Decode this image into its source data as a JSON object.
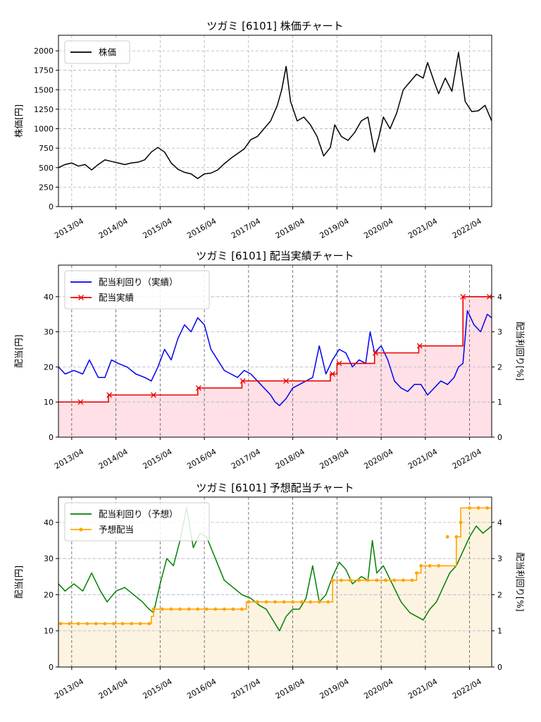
{
  "chart_data": [
    {
      "type": "line",
      "title": "ツガミ [6101]  株価チャート",
      "ylabel": "株価[円]",
      "ylim": [
        0,
        2200
      ],
      "yticks": [
        0,
        250,
        500,
        750,
        1000,
        1250,
        1500,
        1750,
        2000
      ],
      "xlim": [
        2012.95,
        2022.75
      ],
      "xticks": [
        "2013/04",
        "2014/04",
        "2015/04",
        "2016/04",
        "2017/04",
        "2018/04",
        "2019/04",
        "2020/04",
        "2021/04",
        "2022/04"
      ],
      "grid": true,
      "legend": "top-left",
      "series": [
        {
          "name": "株価",
          "color": "#000000",
          "x": [
            2012.95,
            2013.1,
            2013.25,
            2013.4,
            2013.55,
            2013.7,
            2013.85,
            2014.0,
            2014.15,
            2014.3,
            2014.45,
            2014.6,
            2014.75,
            2014.9,
            2015.05,
            2015.2,
            2015.35,
            2015.5,
            2015.65,
            2015.8,
            2015.95,
            2016.1,
            2016.25,
            2016.4,
            2016.55,
            2016.7,
            2016.85,
            2017.0,
            2017.15,
            2017.3,
            2017.45,
            2017.6,
            2017.75,
            2017.9,
            2018.0,
            2018.1,
            2018.2,
            2018.35,
            2018.5,
            2018.65,
            2018.8,
            2018.95,
            2019.1,
            2019.2,
            2019.35,
            2019.5,
            2019.65,
            2019.8,
            2019.95,
            2020.1,
            2020.2,
            2020.3,
            2020.45,
            2020.6,
            2020.75,
            2020.9,
            2021.05,
            2021.2,
            2021.3,
            2021.45,
            2021.55,
            2021.7,
            2021.85,
            2022.0,
            2022.15,
            2022.3,
            2022.45,
            2022.6,
            2022.75
          ],
          "y": [
            500,
            540,
            560,
            520,
            540,
            470,
            540,
            600,
            580,
            560,
            540,
            560,
            570,
            600,
            700,
            760,
            700,
            560,
            480,
            440,
            420,
            360,
            420,
            430,
            470,
            550,
            620,
            680,
            740,
            860,
            900,
            1000,
            1100,
            1300,
            1500,
            1800,
            1350,
            1100,
            1150,
            1050,
            900,
            650,
            760,
            1050,
            900,
            850,
            950,
            1100,
            1150,
            700,
            900,
            1150,
            1000,
            1200,
            1500,
            1600,
            1700,
            1650,
            1850,
            1600,
            1450,
            1650,
            1480,
            1980,
            1350,
            1220,
            1230,
            1300,
            1100
          ]
        }
      ]
    },
    {
      "type": "line",
      "title": "ツガミ [6101]  配当実績チャート",
      "ylabel": "配当[円]",
      "y2label": "配当利回り[%]",
      "ylim": [
        0,
        49
      ],
      "yticks": [
        0,
        10,
        20,
        30,
        40
      ],
      "y2lim": [
        0,
        4.9
      ],
      "y2ticks": [
        0,
        1,
        2,
        3,
        4
      ],
      "xlim": [
        2012.95,
        2022.75
      ],
      "xticks": [
        "2013/04",
        "2014/04",
        "2015/04",
        "2016/04",
        "2017/04",
        "2018/04",
        "2019/04",
        "2020/04",
        "2021/04",
        "2022/04"
      ],
      "legend": "top-left",
      "series": [
        {
          "name": "配当利回り（実績）",
          "color": "#0000ee",
          "axis": "y2",
          "x": [
            2012.95,
            2013.1,
            2013.3,
            2013.5,
            2013.65,
            2013.85,
            2014.0,
            2014.15,
            2014.3,
            2014.5,
            2014.7,
            2014.9,
            2015.05,
            2015.2,
            2015.35,
            2015.5,
            2015.65,
            2015.8,
            2015.95,
            2016.1,
            2016.25,
            2016.4,
            2016.55,
            2016.7,
            2016.85,
            2017.0,
            2017.15,
            2017.3,
            2017.45,
            2017.6,
            2017.75,
            2017.85,
            2017.95,
            2018.1,
            2018.25,
            2018.4,
            2018.55,
            2018.7,
            2018.85,
            2019.0,
            2019.15,
            2019.3,
            2019.45,
            2019.6,
            2019.75,
            2019.9,
            2020.0,
            2020.1,
            2020.25,
            2020.4,
            2020.55,
            2020.7,
            2020.85,
            2021.0,
            2021.15,
            2021.3,
            2021.45,
            2021.6,
            2021.75,
            2021.9,
            2022.0,
            2022.1,
            2022.2,
            2022.35,
            2022.5,
            2022.65,
            2022.75
          ],
          "y": [
            2.0,
            1.8,
            1.9,
            1.8,
            2.2,
            1.7,
            1.7,
            2.2,
            2.1,
            2.0,
            1.8,
            1.7,
            1.6,
            2.0,
            2.5,
            2.2,
            2.8,
            3.2,
            3.0,
            3.4,
            3.2,
            2.5,
            2.2,
            1.9,
            1.8,
            1.7,
            1.9,
            1.8,
            1.6,
            1.4,
            1.2,
            1.0,
            0.9,
            1.1,
            1.4,
            1.5,
            1.6,
            1.7,
            2.6,
            1.8,
            2.2,
            2.5,
            2.4,
            2.0,
            2.2,
            2.1,
            3.0,
            2.4,
            2.6,
            2.2,
            1.6,
            1.4,
            1.3,
            1.5,
            1.5,
            1.2,
            1.4,
            1.6,
            1.5,
            1.7,
            2.0,
            2.1,
            3.6,
            3.2,
            3.0,
            3.5,
            3.4
          ]
        },
        {
          "name": "配当実績",
          "color": "#ee0000",
          "axis": "y",
          "step_x": [
            2012.95,
            2014.08,
            2016.1,
            2017.1,
            2019.1,
            2019.25,
            2020.1,
            2021.1,
            2022.1,
            2022.75
          ],
          "step_y": [
            10,
            12,
            14,
            16,
            18,
            21,
            24,
            26,
            40,
            40
          ],
          "markers_x": [
            2013.45,
            2014.1,
            2015.1,
            2016.12,
            2017.12,
            2018.1,
            2019.15,
            2019.3,
            2020.12,
            2021.12,
            2022.1,
            2022.7
          ],
          "markers_y": [
            10,
            12,
            12,
            14,
            16,
            16,
            18,
            21,
            24,
            26,
            40,
            40
          ]
        }
      ]
    },
    {
      "type": "line",
      "title": "ツガミ [6101]  予想配当チャート",
      "ylabel": "配当[円]",
      "y2label": "配当利回り[%]",
      "ylim": [
        0,
        47
      ],
      "yticks": [
        0,
        10,
        20,
        30,
        40
      ],
      "y2lim": [
        0,
        4.7
      ],
      "y2ticks": [
        0,
        1,
        2,
        3,
        4
      ],
      "xlim": [
        2012.95,
        2022.75
      ],
      "xticks": [
        "2013/04",
        "2014/04",
        "2015/04",
        "2016/04",
        "2017/04",
        "2018/04",
        "2019/04",
        "2020/04",
        "2021/04",
        "2022/04"
      ],
      "legend": "top-left",
      "series": [
        {
          "name": "配当利回り（予想）",
          "color": "#008000",
          "axis": "y2",
          "x": [
            2012.95,
            2013.1,
            2013.3,
            2013.5,
            2013.7,
            2013.9,
            2014.05,
            2014.25,
            2014.45,
            2014.65,
            2014.85,
            2015.0,
            2015.1,
            2015.25,
            2015.4,
            2015.55,
            2015.7,
            2015.85,
            2016.0,
            2016.15,
            2016.3,
            2016.5,
            2016.7,
            2016.9,
            2017.1,
            2017.3,
            2017.5,
            2017.65,
            2017.8,
            2017.95,
            2018.1,
            2018.25,
            2018.4,
            2018.55,
            2018.7,
            2018.85,
            2019.0,
            2019.15,
            2019.3,
            2019.45,
            2019.6,
            2019.8,
            2019.95,
            2020.05,
            2020.15,
            2020.3,
            2020.5,
            2020.7,
            2020.9,
            2021.05,
            2021.2,
            2021.35,
            2021.5,
            2021.65,
            2021.8,
            2021.95,
            2022.1,
            2022.25,
            2022.4,
            2022.55,
            2022.75
          ],
          "y": [
            2.3,
            2.1,
            2.3,
            2.1,
            2.6,
            2.1,
            1.8,
            2.1,
            2.2,
            2.0,
            1.8,
            1.6,
            1.5,
            2.3,
            3.0,
            2.8,
            3.5,
            4.4,
            3.3,
            3.7,
            3.6,
            3.0,
            2.4,
            2.2,
            2.0,
            1.9,
            1.7,
            1.6,
            1.3,
            1.0,
            1.4,
            1.6,
            1.6,
            1.9,
            2.8,
            1.8,
            2.0,
            2.5,
            2.9,
            2.7,
            2.3,
            2.5,
            2.4,
            3.5,
            2.6,
            2.8,
            2.3,
            1.8,
            1.5,
            1.4,
            1.3,
            1.6,
            1.8,
            2.2,
            2.6,
            2.8,
            3.2,
            3.6,
            3.9,
            3.7,
            3.9
          ]
        },
        {
          "name": "予想配当",
          "color": "#ffa500",
          "axis": "y",
          "step_x": [
            2012.95,
            2015.05,
            2015.1,
            2017.2,
            2019.05,
            2019.15,
            2021.05,
            2021.15,
            2021.55,
            2021.95,
            2022.05,
            2022.75
          ],
          "step_y": [
            12,
            14,
            16,
            18,
            18,
            24,
            26,
            28,
            28,
            36,
            44,
            44
          ],
          "markers_x": [
            2013.0,
            2013.2,
            2013.4,
            2013.6,
            2013.8,
            2014.0,
            2014.2,
            2014.4,
            2014.6,
            2014.8,
            2015.0,
            2015.1,
            2015.3,
            2015.5,
            2015.7,
            2015.9,
            2016.1,
            2016.3,
            2016.5,
            2016.7,
            2016.9,
            2017.1,
            2017.25,
            2017.45,
            2017.65,
            2017.85,
            2018.05,
            2018.25,
            2018.45,
            2018.65,
            2018.85,
            2019.05,
            2019.15,
            2019.35,
            2019.55,
            2019.75,
            2019.95,
            2020.15,
            2020.35,
            2020.55,
            2020.75,
            2020.95,
            2021.05,
            2021.15,
            2021.35,
            2021.55,
            2021.75,
            2021.95,
            2022.05,
            2022.25,
            2022.45,
            2022.65
          ],
          "markers_y": [
            12,
            12,
            12,
            12,
            12,
            12,
            12,
            12,
            12,
            12,
            12,
            16,
            16,
            16,
            16,
            16,
            16,
            16,
            16,
            16,
            16,
            16,
            18,
            18,
            18,
            18,
            18,
            18,
            18,
            18,
            18,
            18,
            24,
            24,
            24,
            24,
            24,
            24,
            24,
            24,
            24,
            24,
            26,
            28,
            28,
            28,
            36,
            36,
            40,
            44,
            44,
            44
          ]
        }
      ]
    }
  ]
}
